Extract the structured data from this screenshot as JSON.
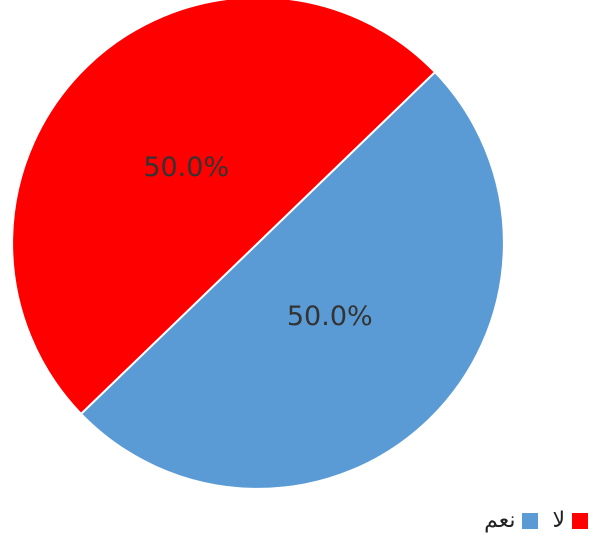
{
  "chart_data": {
    "type": "pie",
    "title": "",
    "categories": [
      "لا",
      "نعم"
    ],
    "values": [
      50.0,
      50.0
    ],
    "value_labels": [
      "50.0%",
      "50.0%"
    ],
    "colors": [
      "#ff0000",
      "#5b9bd5"
    ],
    "legend_placement": "bottom-right"
  }
}
